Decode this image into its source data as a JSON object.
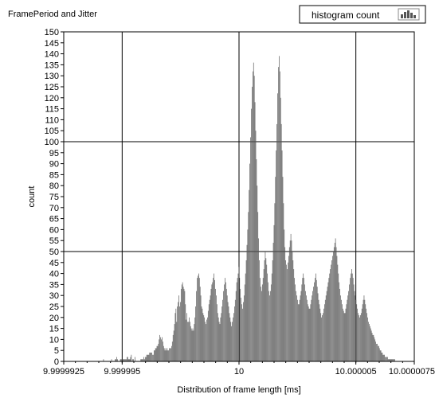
{
  "chart_data": {
    "type": "bar",
    "title": "FramePeriod and Jitter",
    "xlabel": "Distribution of frame length [ms]",
    "ylabel": "count",
    "xlim": [
      9.9999925,
      10.0000075
    ],
    "ylim": [
      0,
      150
    ],
    "x_ticks": [
      9.9999925,
      9.999995,
      10,
      10.000005,
      10.0000075
    ],
    "x_tick_labels": [
      "9.9999925",
      "9.999995",
      "10",
      "10.000005",
      "10.0000075"
    ],
    "y_ticks": [
      0,
      5,
      10,
      15,
      20,
      25,
      30,
      35,
      40,
      45,
      50,
      55,
      60,
      65,
      70,
      75,
      80,
      85,
      90,
      95,
      100,
      105,
      110,
      115,
      120,
      125,
      130,
      135,
      140,
      145,
      150
    ],
    "grid": true,
    "legend": {
      "position": "top-right",
      "entries": [
        "histogram count"
      ]
    },
    "bar_color": "#555555",
    "values": [
      0,
      0,
      0,
      0,
      0,
      0,
      0,
      0,
      0,
      0,
      0,
      0,
      0,
      0,
      0,
      0,
      0,
      0,
      0,
      0,
      0,
      0,
      0,
      0,
      0,
      0,
      0,
      0,
      0,
      0,
      0,
      0,
      0,
      0,
      0,
      0,
      0,
      0,
      0,
      0,
      0,
      0,
      0,
      0,
      0,
      0,
      0,
      0,
      0,
      0,
      0,
      0,
      0,
      0,
      1,
      0,
      0,
      0,
      0,
      0,
      0,
      0,
      0,
      0,
      0,
      1,
      0,
      0,
      0,
      0,
      1,
      1,
      2,
      1,
      0,
      0,
      0,
      1,
      1,
      1,
      1,
      1,
      1,
      1,
      1,
      1,
      2,
      2,
      1,
      1,
      1,
      2,
      3,
      0,
      1,
      1,
      0,
      2,
      0,
      0,
      0,
      0,
      0,
      0,
      0,
      1,
      1,
      1,
      1,
      2,
      1,
      2,
      2,
      3,
      3,
      3,
      3,
      4,
      4,
      4,
      4,
      3,
      3,
      5,
      5,
      6,
      6,
      7,
      7,
      8,
      10,
      12,
      11,
      10,
      11,
      9,
      7,
      6,
      5,
      6,
      5,
      6,
      5,
      5,
      6,
      6,
      6,
      7,
      9,
      12,
      14,
      17,
      22,
      24,
      18,
      25,
      27,
      30,
      25,
      27,
      33,
      35,
      36,
      34,
      33,
      32,
      26,
      19,
      22,
      18,
      18,
      20,
      18,
      16,
      15,
      14,
      15,
      14,
      17,
      20,
      25,
      32,
      38,
      39,
      40,
      38,
      34,
      30,
      25,
      24,
      22,
      21,
      20,
      18,
      17,
      19,
      20,
      23,
      26,
      28,
      30,
      33,
      35,
      36,
      38,
      40,
      37,
      33,
      30,
      26,
      22,
      20,
      18,
      17,
      20,
      22,
      25,
      28,
      32,
      35,
      38,
      36,
      33,
      30,
      27,
      25,
      22,
      20,
      18,
      16,
      18,
      20,
      22,
      25,
      28,
      32,
      36,
      38,
      40,
      43,
      38,
      33,
      29,
      26,
      24,
      27,
      30,
      35,
      40,
      46,
      53,
      60,
      68,
      78,
      90,
      102,
      115,
      125,
      132,
      136,
      130,
      118,
      105,
      92,
      80,
      68,
      56,
      46,
      38,
      34,
      32,
      35,
      38,
      42,
      46,
      50,
      47,
      44,
      40,
      36,
      32,
      30,
      32,
      35,
      40,
      46,
      54,
      62,
      72,
      84,
      96,
      108,
      122,
      134,
      139,
      132,
      120,
      108,
      96,
      84,
      72,
      60,
      52,
      46,
      44,
      42,
      45,
      48,
      52,
      55,
      58,
      55,
      50,
      46,
      42,
      38,
      35,
      32,
      30,
      28,
      26,
      26,
      28,
      30,
      32,
      35,
      38,
      40,
      38,
      35,
      32,
      30,
      28,
      26,
      25,
      24,
      24,
      26,
      28,
      30,
      32,
      34,
      36,
      38,
      40,
      37,
      34,
      31,
      28,
      26,
      24,
      22,
      20,
      21,
      22,
      24,
      26,
      28,
      30,
      32,
      34,
      36,
      38,
      40,
      42,
      44,
      46,
      48,
      50,
      52,
      54,
      56,
      52,
      48,
      44,
      40,
      36,
      33,
      30,
      28,
      26,
      24,
      23,
      22,
      22,
      24,
      26,
      28,
      30,
      32,
      35,
      38,
      40,
      42,
      40,
      38,
      35,
      32,
      30,
      28,
      26,
      24,
      22,
      21,
      20,
      21,
      22,
      24,
      26,
      28,
      30,
      28,
      26,
      24,
      22,
      20,
      18,
      17,
      16,
      15,
      14,
      13,
      12,
      12,
      11,
      10,
      9,
      8,
      8,
      7,
      7,
      6,
      5,
      5,
      4,
      4,
      3,
      3,
      3,
      2,
      2,
      2,
      2,
      1,
      1,
      1,
      1,
      1,
      1,
      1,
      1,
      1,
      1,
      0,
      0,
      0,
      0,
      0,
      0,
      0,
      0,
      0,
      0,
      0,
      0,
      0,
      0,
      0,
      0,
      0,
      0,
      0,
      0,
      0,
      0,
      0,
      0,
      0,
      0
    ]
  }
}
